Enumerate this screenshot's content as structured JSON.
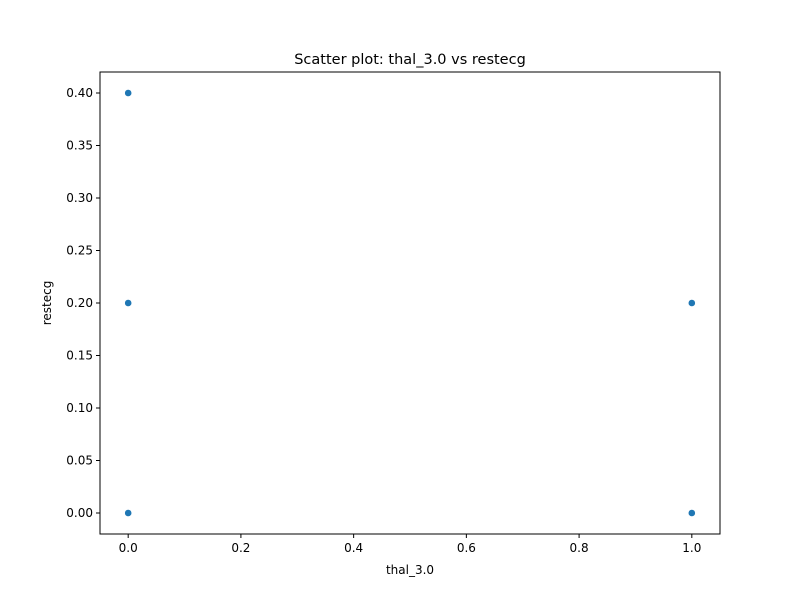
{
  "chart_data": {
    "type": "scatter",
    "title": "Scatter plot: thal_3.0 vs restecg",
    "xlabel": "thal_3.0",
    "ylabel": "restecg",
    "xlim": [
      -0.05,
      1.05
    ],
    "ylim": [
      -0.02,
      0.42
    ],
    "x_ticks": [
      0.0,
      0.2,
      0.4,
      0.6,
      0.8,
      1.0
    ],
    "x_tick_labels": [
      "0.0",
      "0.2",
      "0.4",
      "0.6",
      "0.8",
      "1.0"
    ],
    "y_ticks": [
      0.0,
      0.05,
      0.1,
      0.15,
      0.2,
      0.25,
      0.3,
      0.35,
      0.4
    ],
    "y_tick_labels": [
      "0.00",
      "0.05",
      "0.10",
      "0.15",
      "0.20",
      "0.25",
      "0.30",
      "0.35",
      "0.40"
    ],
    "grid": false,
    "legend": "none",
    "marker_color": "#1f77b4",
    "points": [
      {
        "x": 0.0,
        "y": 0.4
      },
      {
        "x": 0.0,
        "y": 0.2
      },
      {
        "x": 0.0,
        "y": 0.0
      },
      {
        "x": 1.0,
        "y": 0.2
      },
      {
        "x": 1.0,
        "y": 0.0
      }
    ]
  }
}
